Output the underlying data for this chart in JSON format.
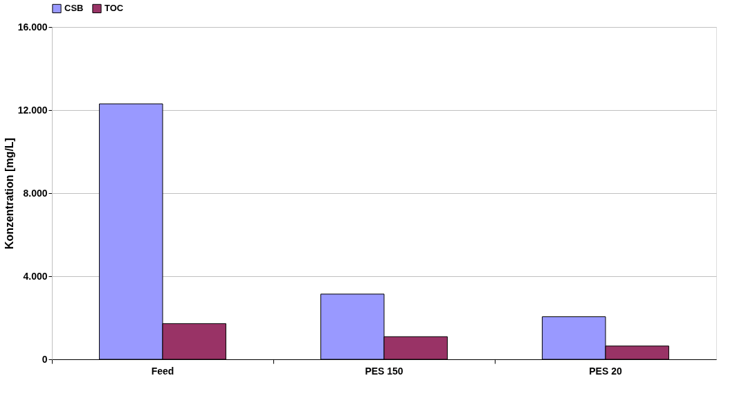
{
  "chart_data": {
    "type": "bar",
    "ylabel": "Konzentration [mg/L]",
    "categories": [
      "Feed",
      "PES 150",
      "PES 20"
    ],
    "series": [
      {
        "name": "CSB",
        "color": "#9999ff",
        "values": [
          12300,
          3140,
          2050
        ]
      },
      {
        "name": "TOC",
        "color": "#993366",
        "values": [
          1720,
          1090,
          640
        ]
      }
    ],
    "ylim": [
      0,
      16000
    ],
    "yticks": [
      {
        "value": 0,
        "label": "0"
      },
      {
        "value": 4000,
        "label": "4.000"
      },
      {
        "value": 8000,
        "label": "8.000"
      },
      {
        "value": 12000,
        "label": "12.000"
      },
      {
        "value": 16000,
        "label": "16.000"
      }
    ],
    "grid": "y",
    "legend": "top"
  }
}
